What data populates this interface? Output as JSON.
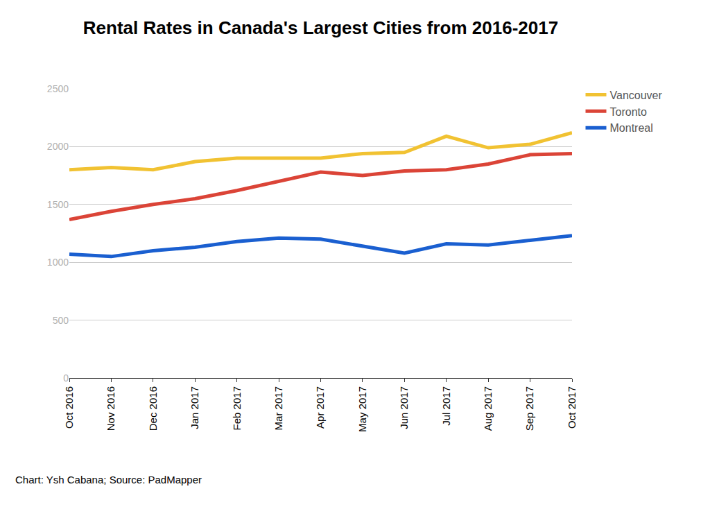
{
  "chart_data": {
    "type": "line",
    "title": "Rental Rates in Canada's Largest Cities from 2016-2017",
    "categories": [
      "Oct 2016",
      "Nov 2016",
      "Dec 2016",
      "Jan 2017",
      "Feb 2017",
      "Mar 2017",
      "Apr 2017",
      "May 2017",
      "Jun 2017",
      "Jul 2017",
      "Aug 2017",
      "Sep 2017",
      "Oct 2017"
    ],
    "series": [
      {
        "name": "Vancouver",
        "color": "#f1c232",
        "values": [
          1800,
          1820,
          1800,
          1870,
          1900,
          1900,
          1900,
          1940,
          1950,
          2090,
          1990,
          2020,
          2120
        ]
      },
      {
        "name": "Toronto",
        "color": "#db4437",
        "values": [
          1370,
          1440,
          1500,
          1550,
          1620,
          1700,
          1780,
          1750,
          1790,
          1800,
          1850,
          1930,
          1940
        ]
      },
      {
        "name": "Montreal",
        "color": "#1a5fd0",
        "values": [
          1070,
          1050,
          1100,
          1130,
          1180,
          1210,
          1200,
          1140,
          1080,
          1160,
          1150,
          1190,
          1230
        ]
      }
    ],
    "ylim": [
      0,
      2500
    ],
    "yticks": [
      0,
      500,
      1000,
      1500,
      2000,
      2500
    ],
    "grid": true,
    "legend": "top right",
    "annotations": [
      "Chart: Ysh Cabana; Source: PadMapper"
    ]
  }
}
